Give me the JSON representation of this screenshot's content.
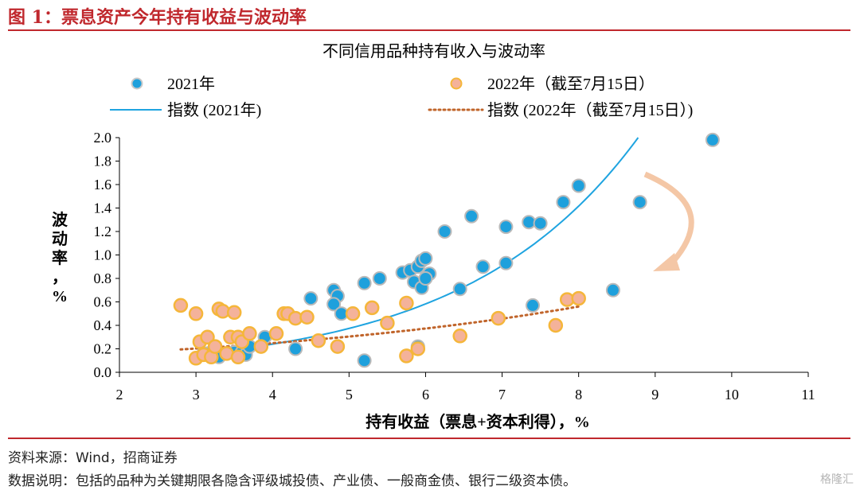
{
  "figure_title": "图 1：票息资产今年持有收益与波动率",
  "source_line": "资料来源：Wind，招商证券",
  "note_line": "数据说明：包括的品种为关键期限各隐含评级城投债、产业债、一般商金债、银行二级资本债。",
  "watermark": "格隆汇",
  "colors": {
    "accent_red": "#c0282d",
    "series_2021": "#1ea0dc",
    "series_2022": "#f5b15a",
    "trend_2021": "#1fa4e0",
    "trend_2022": "#c0642a",
    "arrow": "#f4c7a6"
  },
  "chart_data": {
    "type": "scatter",
    "title": "不同信用品种持有收入与波动率",
    "xlabel": "持有收益（票息+资本利得），%",
    "ylabel": "波动率，%",
    "xlim": [
      2,
      11
    ],
    "ylim": [
      0,
      2.0
    ],
    "x_ticks": [
      "2",
      "3",
      "4",
      "5",
      "6",
      "7",
      "8",
      "9",
      "10",
      "11"
    ],
    "y_ticks": [
      "0.0",
      "0.2",
      "0.4",
      "0.6",
      "0.8",
      "1.0",
      "1.2",
      "1.4",
      "1.6",
      "1.8",
      "2.0"
    ],
    "legend": [
      "2021年",
      "2022年（截至7月15日）",
      "指数 (2021年)",
      "指数 (2022年（截至7月15日）)"
    ],
    "legend_position": "top",
    "grid": false,
    "series": [
      {
        "name": "2021年",
        "kind": "points",
        "points": [
          [
            3.0,
            0.12
          ],
          [
            3.1,
            0.16
          ],
          [
            3.2,
            0.17
          ],
          [
            3.3,
            0.13
          ],
          [
            3.4,
            0.16
          ],
          [
            3.5,
            0.17
          ],
          [
            3.6,
            0.17
          ],
          [
            3.65,
            0.15
          ],
          [
            3.7,
            0.22
          ],
          [
            3.9,
            0.3
          ],
          [
            4.3,
            0.2
          ],
          [
            4.5,
            0.63
          ],
          [
            4.8,
            0.7
          ],
          [
            4.85,
            0.65
          ],
          [
            4.8,
            0.58
          ],
          [
            4.9,
            0.5
          ],
          [
            5.2,
            0.76
          ],
          [
            5.2,
            0.1
          ],
          [
            5.4,
            0.8
          ],
          [
            5.7,
            0.85
          ],
          [
            5.8,
            0.87
          ],
          [
            5.85,
            0.77
          ],
          [
            5.9,
            0.9
          ],
          [
            5.9,
            0.22
          ],
          [
            5.95,
            0.95
          ],
          [
            6.0,
            0.97
          ],
          [
            5.95,
            0.72
          ],
          [
            6.05,
            0.84
          ],
          [
            6.0,
            0.8
          ],
          [
            6.25,
            1.2
          ],
          [
            6.45,
            0.71
          ],
          [
            6.6,
            1.33
          ],
          [
            6.75,
            0.9
          ],
          [
            7.05,
            0.93
          ],
          [
            7.05,
            1.24
          ],
          [
            7.4,
            0.57
          ],
          [
            7.35,
            1.28
          ],
          [
            7.5,
            1.27
          ],
          [
            7.8,
            1.45
          ],
          [
            8.0,
            1.59
          ],
          [
            8.45,
            0.7
          ],
          [
            8.8,
            1.45
          ],
          [
            9.75,
            1.98
          ]
        ]
      },
      {
        "name": "2022年（截至7月15日）",
        "kind": "points",
        "points": [
          [
            2.8,
            0.57
          ],
          [
            3.0,
            0.12
          ],
          [
            3.0,
            0.5
          ],
          [
            3.05,
            0.26
          ],
          [
            3.1,
            0.15
          ],
          [
            3.15,
            0.3
          ],
          [
            3.2,
            0.13
          ],
          [
            3.25,
            0.22
          ],
          [
            3.3,
            0.54
          ],
          [
            3.35,
            0.52
          ],
          [
            3.4,
            0.16
          ],
          [
            3.45,
            0.3
          ],
          [
            3.5,
            0.51
          ],
          [
            3.55,
            0.3
          ],
          [
            3.55,
            0.13
          ],
          [
            3.6,
            0.26
          ],
          [
            3.7,
            0.33
          ],
          [
            3.85,
            0.22
          ],
          [
            4.05,
            0.33
          ],
          [
            4.15,
            0.5
          ],
          [
            4.2,
            0.5
          ],
          [
            4.3,
            0.46
          ],
          [
            4.45,
            0.47
          ],
          [
            4.6,
            0.27
          ],
          [
            4.85,
            0.22
          ],
          [
            5.05,
            0.5
          ],
          [
            5.3,
            0.55
          ],
          [
            5.5,
            0.42
          ],
          [
            5.75,
            0.59
          ],
          [
            5.75,
            0.14
          ],
          [
            5.9,
            0.2
          ],
          [
            6.45,
            0.31
          ],
          [
            6.95,
            0.46
          ],
          [
            7.7,
            0.4
          ],
          [
            7.85,
            0.62
          ],
          [
            8.0,
            0.63
          ]
        ]
      },
      {
        "name": "指数 (2021年)",
        "kind": "exponential_trend",
        "a": 0.0406,
        "b": 0.444,
        "x_range": [
          3.0,
          8.8
        ]
      },
      {
        "name": "指数 (2022年（截至7月15日）)",
        "kind": "exponential_trend",
        "a": 0.1102,
        "b": 0.2033,
        "x_range": [
          2.8,
          8.0
        ]
      }
    ]
  }
}
